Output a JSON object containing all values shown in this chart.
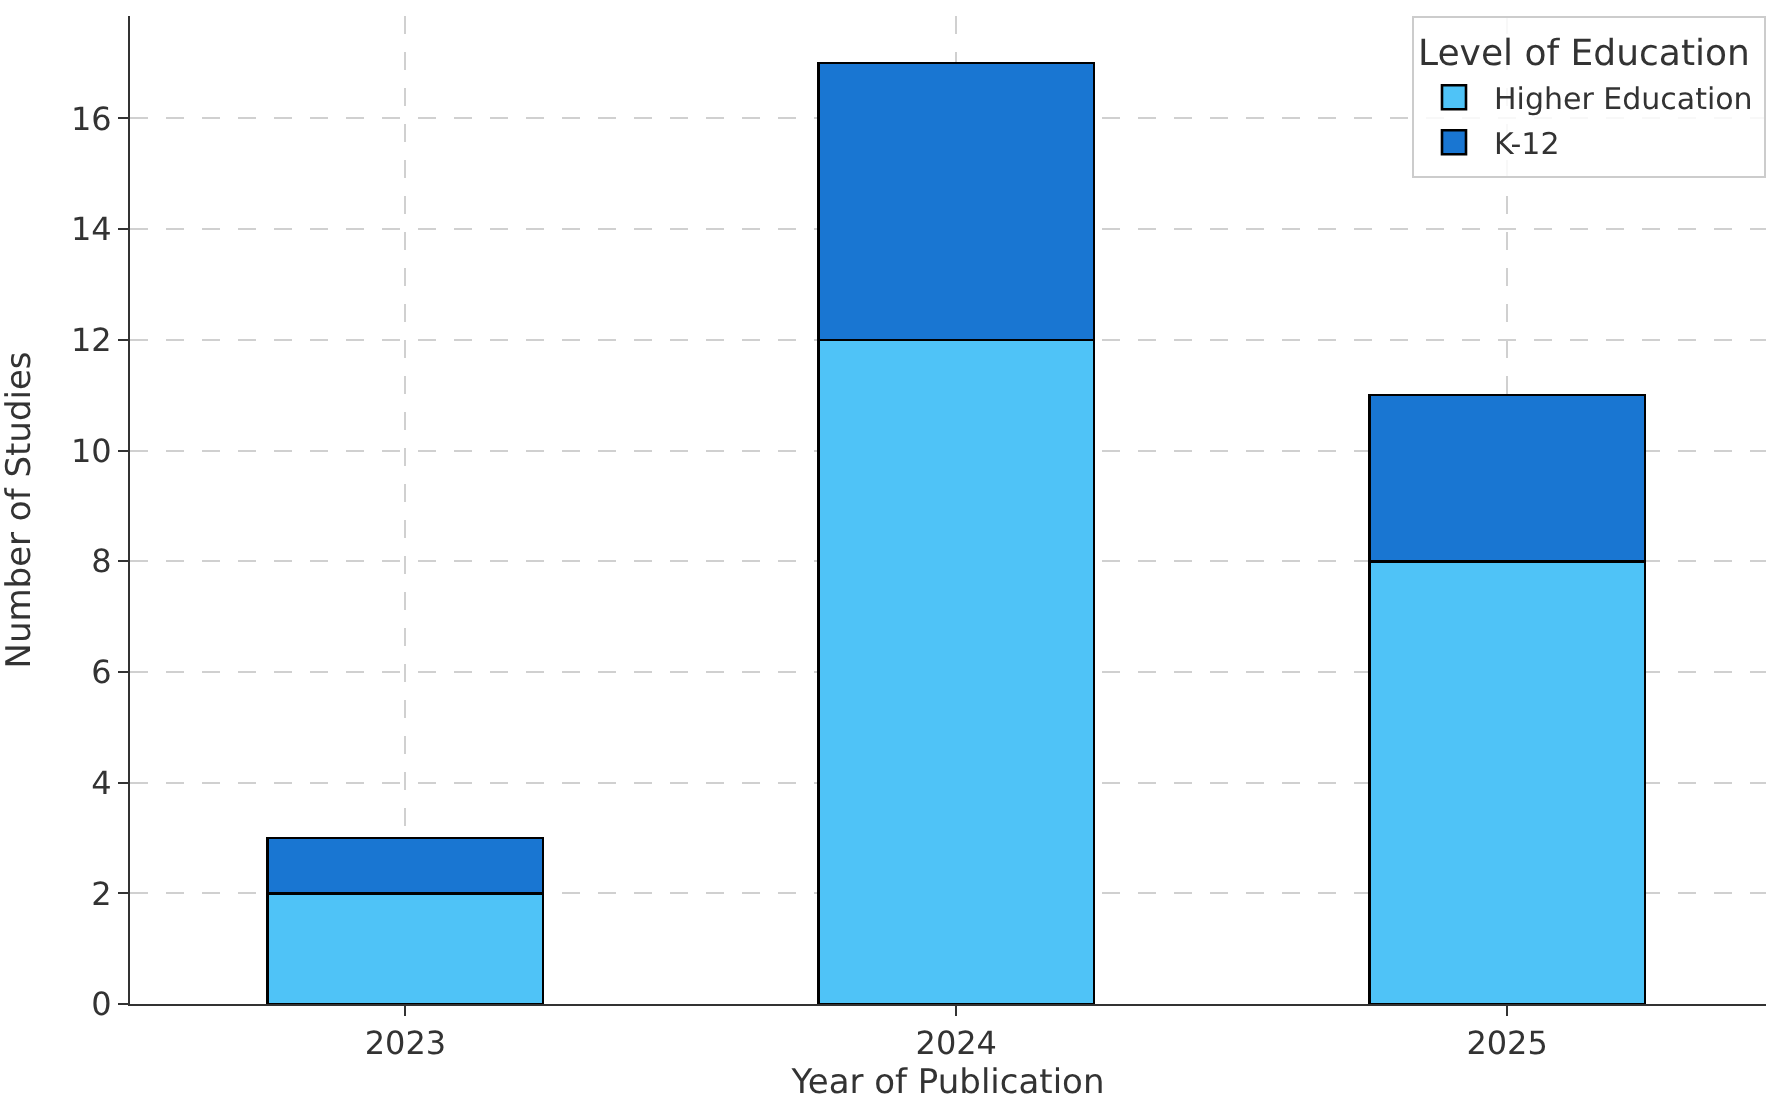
{
  "chart_data": {
    "type": "bar",
    "stacked": true,
    "xlabel": "Year of Publication",
    "ylabel": "Number of Studies",
    "legend_title": "Level of Education",
    "categories": [
      "2023",
      "2024",
      "2025"
    ],
    "series": [
      {
        "name": "Higher Education",
        "color": "#4fc3f7",
        "values": [
          2,
          12,
          8
        ]
      },
      {
        "name": "K-12",
        "color": "#1976d2",
        "values": [
          1,
          5,
          3
        ]
      }
    ],
    "ylim": [
      0,
      17.85
    ],
    "yticks": [
      0,
      2,
      4,
      6,
      8,
      10,
      12,
      14,
      16
    ],
    "grid": true,
    "legend": "top right"
  }
}
